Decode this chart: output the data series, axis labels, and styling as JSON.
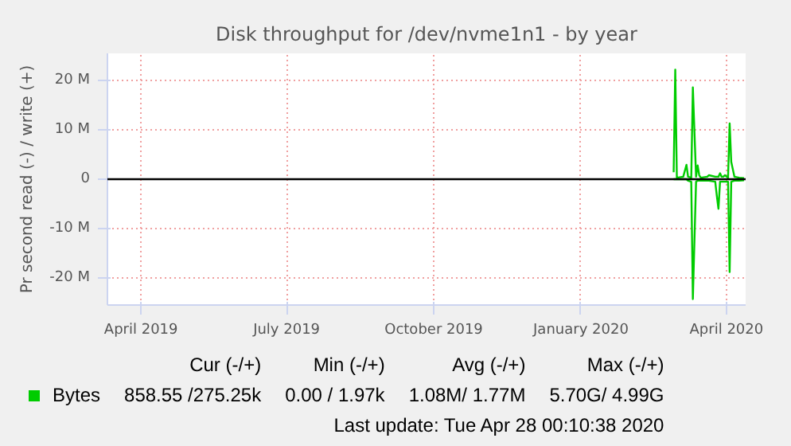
{
  "chart_data": {
    "type": "line",
    "title": "Disk throughput for /dev/nvme1n1 - by year",
    "ylabel": "Pr second read (-) / write (+)",
    "x": [
      "2020-03-14",
      "2020-03-15",
      "2020-03-16",
      "2020-03-20",
      "2020-03-22",
      "2020-03-23",
      "2020-03-25",
      "2020-03-26",
      "2020-03-28",
      "2020-03-29",
      "2020-03-30",
      "2020-03-31",
      "2020-04-04",
      "2020-04-05",
      "2020-04-09",
      "2020-04-10",
      "2020-04-11",
      "2020-04-12",
      "2020-04-13",
      "2020-04-14",
      "2020-04-15",
      "2020-04-17",
      "2020-04-18",
      "2020-04-19",
      "2020-04-21",
      "2020-04-24",
      "2020-04-27"
    ],
    "series": [
      {
        "name": "Bytes",
        "color": "#00cc00",
        "values": [
          1.4,
          22.2,
          0.3,
          0.5,
          2.9,
          0.5,
          0.3,
          18.6,
          0.5,
          2.8,
          0.8,
          0.3,
          0.5,
          0.8,
          0.5,
          0.5,
          0.5,
          1.2,
          0.5,
          0.5,
          0.8,
          0.3,
          11.3,
          3.5,
          0.5,
          0.3,
          0.2
        ]
      },
      {
        "color": "#00cc00",
        "values": [
          0,
          0,
          0,
          0,
          0,
          -0.3,
          -0.5,
          -24.3,
          -0.5,
          -0.3,
          -0.3,
          -0.3,
          -0.3,
          -0.3,
          -0.5,
          -3.4,
          -6.0,
          -0.5,
          -0.5,
          -0.5,
          -0.5,
          -0.5,
          -18.8,
          -0.5,
          -0.3,
          -0.3,
          -0.2
        ]
      }
    ],
    "xlim": [
      "2019-03-26",
      "2020-04-28"
    ],
    "xticks": [
      {
        "value": "2019-04-16",
        "label": "April 2019"
      },
      {
        "value": "2019-07-16",
        "label": "July 2019"
      },
      {
        "value": "2019-10-16",
        "label": "October 2019"
      },
      {
        "value": "2020-01-16",
        "label": "January 2020"
      },
      {
        "value": "2020-04-16",
        "label": "April 2020"
      }
    ],
    "ylim": [
      -25.5,
      25.5
    ],
    "yticks": [
      {
        "value": -20,
        "label": "-20 M"
      },
      {
        "value": -10,
        "label": "-10 M"
      },
      {
        "value": 0,
        "label": "0"
      },
      {
        "value": 10,
        "label": "10 M"
      },
      {
        "value": 20,
        "label": "20 M"
      }
    ],
    "ref_lines": [
      {
        "axis": "y",
        "value": 0,
        "color": "#000000"
      }
    ],
    "grid": true,
    "legend": "bottom",
    "marker": "none",
    "line_style": "solid",
    "annotations": [
      "Cur (-/+)",
      "Min (-/+)",
      "Avg (-/+)",
      "Max (-/+)",
      "858.55 /275.25k",
      "0.00 /   1.97k",
      "1.08M/   1.77M",
      "5.70G/   4.99G",
      "Last update: Tue Apr 28 00:10:38 2020"
    ]
  }
}
